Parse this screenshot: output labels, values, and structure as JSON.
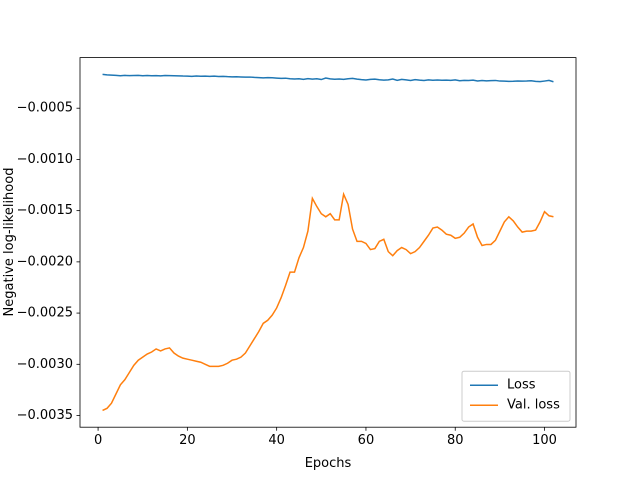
{
  "chart_data": {
    "type": "line",
    "xlabel": "Epochs",
    "ylabel": "Negative log-likelihood",
    "x": [
      1,
      2,
      3,
      4,
      5,
      6,
      7,
      8,
      9,
      10,
      11,
      12,
      13,
      14,
      15,
      16,
      17,
      18,
      19,
      20,
      21,
      22,
      23,
      24,
      25,
      26,
      27,
      28,
      29,
      30,
      31,
      32,
      33,
      34,
      35,
      36,
      37,
      38,
      39,
      40,
      41,
      42,
      43,
      44,
      45,
      46,
      47,
      48,
      49,
      50,
      51,
      52,
      53,
      54,
      55,
      56,
      57,
      58,
      59,
      60,
      61,
      62,
      63,
      64,
      65,
      66,
      67,
      68,
      69,
      70,
      71,
      72,
      73,
      74,
      75,
      76,
      77,
      78,
      79,
      80,
      81,
      82,
      83,
      84,
      85,
      86,
      87,
      88,
      89,
      90,
      91,
      92,
      93,
      94,
      95,
      96,
      97,
      98,
      99,
      100,
      101,
      102
    ],
    "series": [
      {
        "name": "Loss",
        "color": "#1f77b4",
        "values": [
          -0.00017,
          -0.000175,
          -0.000177,
          -0.00018,
          -0.000183,
          -0.00018,
          -0.000182,
          -0.000181,
          -0.00018,
          -0.000183,
          -0.000181,
          -0.000183,
          -0.000182,
          -0.000184,
          -0.000181,
          -0.000182,
          -0.000183,
          -0.000184,
          -0.000186,
          -0.000187,
          -0.000189,
          -0.000186,
          -0.000188,
          -0.000187,
          -0.000189,
          -0.000187,
          -0.000191,
          -0.000189,
          -0.000192,
          -0.000194,
          -0.000193,
          -0.000195,
          -0.000197,
          -0.000196,
          -0.000199,
          -0.000201,
          -0.000204,
          -0.000202,
          -0.000203,
          -0.000206,
          -0.000209,
          -0.000207,
          -0.000212,
          -0.000215,
          -0.000212,
          -0.000218,
          -0.000211,
          -0.000216,
          -0.000213,
          -0.00022,
          -0.000205,
          -0.000214,
          -0.000217,
          -0.000215,
          -0.000219,
          -0.000212,
          -0.000209,
          -0.000216,
          -0.000221,
          -0.000225,
          -0.000219,
          -0.000216,
          -0.000222,
          -0.000226,
          -0.000223,
          -0.000215,
          -0.000228,
          -0.000219,
          -0.000224,
          -0.000229,
          -0.000221,
          -0.000226,
          -0.00023,
          -0.000224,
          -0.000227,
          -0.000225,
          -0.000227,
          -0.000226,
          -0.000228,
          -0.000224,
          -0.000232,
          -0.000228,
          -0.00023,
          -0.000226,
          -0.000234,
          -0.00023,
          -0.000233,
          -0.000231,
          -0.000229,
          -0.000235,
          -0.000236,
          -0.000238,
          -0.000237,
          -0.000234,
          -0.000236,
          -0.000235,
          -0.000232,
          -0.000238,
          -0.000241,
          -0.000235,
          -0.000229,
          -0.000242
        ]
      },
      {
        "name": "Val. loss",
        "color": "#ff7f0e",
        "values": [
          -0.00345,
          -0.00343,
          -0.00338,
          -0.00329,
          -0.0032,
          -0.00315,
          -0.00308,
          -0.00301,
          -0.00296,
          -0.00293,
          -0.0029,
          -0.00288,
          -0.00285,
          -0.00287,
          -0.00285,
          -0.00284,
          -0.00289,
          -0.00292,
          -0.00294,
          -0.00295,
          -0.00296,
          -0.00297,
          -0.00298,
          -0.003,
          -0.00302,
          -0.00302,
          -0.00302,
          -0.00301,
          -0.00299,
          -0.00296,
          -0.00295,
          -0.00293,
          -0.00289,
          -0.00282,
          -0.00275,
          -0.00268,
          -0.0026,
          -0.00257,
          -0.00252,
          -0.00245,
          -0.00235,
          -0.00223,
          -0.0021,
          -0.0021,
          -0.00196,
          -0.00186,
          -0.0017,
          -0.00138,
          -0.00146,
          -0.00153,
          -0.00156,
          -0.00153,
          -0.00159,
          -0.00159,
          -0.00134,
          -0.00144,
          -0.00168,
          -0.0018,
          -0.0018,
          -0.00182,
          -0.00188,
          -0.00187,
          -0.0018,
          -0.00178,
          -0.0019,
          -0.00194,
          -0.00189,
          -0.00186,
          -0.00188,
          -0.00192,
          -0.0019,
          -0.00186,
          -0.0018,
          -0.00174,
          -0.00167,
          -0.00166,
          -0.00169,
          -0.00173,
          -0.00174,
          -0.00177,
          -0.00176,
          -0.00172,
          -0.00166,
          -0.00163,
          -0.00176,
          -0.00184,
          -0.00183,
          -0.00183,
          -0.00179,
          -0.0017,
          -0.00161,
          -0.00156,
          -0.0016,
          -0.00166,
          -0.00171,
          -0.0017,
          -0.0017,
          -0.00169,
          -0.00161,
          -0.00151,
          -0.00155,
          -0.00156
        ]
      }
    ],
    "xlim": [
      -4.05,
      107.05
    ],
    "xticks": [
      0,
      20,
      40,
      60,
      80,
      100
    ],
    "ylim": [
      -0.003614,
      -6e-06
    ],
    "yticks": [
      {
        "value": -0.0035,
        "label": "−0.0035"
      },
      {
        "value": -0.003,
        "label": "−0.0030"
      },
      {
        "value": -0.0025,
        "label": "−0.0025"
      },
      {
        "value": -0.002,
        "label": "−0.0020"
      },
      {
        "value": -0.0015,
        "label": "−0.0015"
      },
      {
        "value": -0.001,
        "label": "−0.0010"
      },
      {
        "value": -0.0005,
        "label": "−0.0005"
      }
    ],
    "legend": "lower right"
  }
}
